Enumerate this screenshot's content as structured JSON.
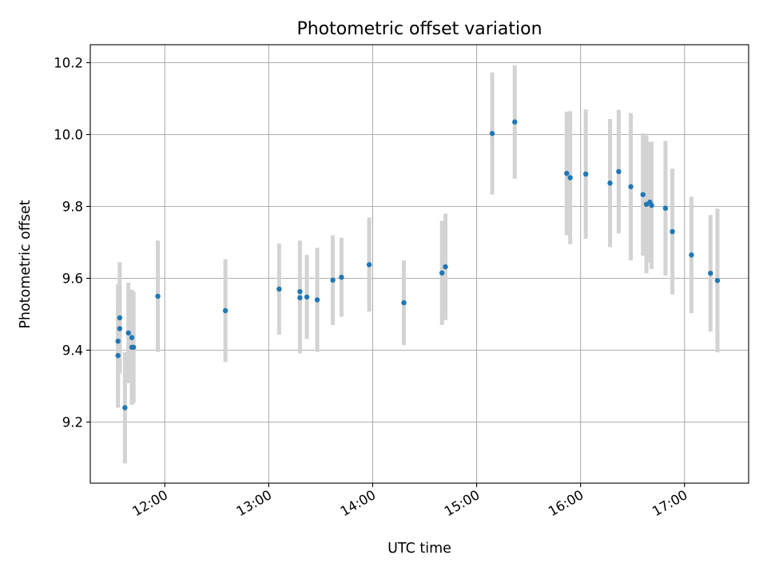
{
  "chart_data": {
    "type": "scatter",
    "title": "Photometric offset variation",
    "xlabel": "UTC time",
    "ylabel": "Photometric offset",
    "xlim": [
      "11:17",
      "17:37"
    ],
    "ylim": [
      9.03,
      10.25
    ],
    "x_ticks": [
      "12:00",
      "13:00",
      "14:00",
      "15:00",
      "16:00",
      "17:00"
    ],
    "y_ticks": [
      9.2,
      9.4,
      9.6,
      9.8,
      10.0,
      10.2
    ],
    "grid": true,
    "legend": "none",
    "colors": {
      "point": "#1f77b4",
      "error_bar": "#d3d3d3"
    },
    "points": [
      {
        "x": "11:33",
        "y": 9.385,
        "err": 0.145
      },
      {
        "x": "11:33",
        "y": 9.425,
        "err": 0.16
      },
      {
        "x": "11:34",
        "y": 9.46,
        "err": 0.12
      },
      {
        "x": "11:34",
        "y": 9.49,
        "err": 0.155
      },
      {
        "x": "11:37",
        "y": 9.24,
        "err": 0.155
      },
      {
        "x": "11:39",
        "y": 9.448,
        "err": 0.14
      },
      {
        "x": "11:41",
        "y": 9.435,
        "err": 0.13
      },
      {
        "x": "11:41",
        "y": 9.408,
        "err": 0.16
      },
      {
        "x": "11:42",
        "y": 9.408,
        "err": 0.155
      },
      {
        "x": "11:56",
        "y": 9.55,
        "err": 0.155
      },
      {
        "x": "12:35",
        "y": 9.51,
        "err": 0.143
      },
      {
        "x": "13:06",
        "y": 9.57,
        "err": 0.127
      },
      {
        "x": "13:18",
        "y": 9.563,
        "err": 0.142
      },
      {
        "x": "13:18",
        "y": 9.546,
        "err": 0.155
      },
      {
        "x": "13:22",
        "y": 9.548,
        "err": 0.117
      },
      {
        "x": "13:28",
        "y": 9.54,
        "err": 0.145
      },
      {
        "x": "13:37",
        "y": 9.595,
        "err": 0.125
      },
      {
        "x": "13:42",
        "y": 9.603,
        "err": 0.11
      },
      {
        "x": "13:58",
        "y": 9.638,
        "err": 0.131
      },
      {
        "x": "14:18",
        "y": 9.532,
        "err": 0.118
      },
      {
        "x": "14:40",
        "y": 9.615,
        "err": 0.145
      },
      {
        "x": "14:42",
        "y": 9.632,
        "err": 0.148
      },
      {
        "x": "15:09",
        "y": 10.003,
        "err": 0.17
      },
      {
        "x": "15:22",
        "y": 10.035,
        "err": 0.158
      },
      {
        "x": "15:52",
        "y": 9.892,
        "err": 0.172
      },
      {
        "x": "15:54",
        "y": 9.88,
        "err": 0.185
      },
      {
        "x": "16:03",
        "y": 9.89,
        "err": 0.18
      },
      {
        "x": "16:17",
        "y": 9.865,
        "err": 0.178
      },
      {
        "x": "16:22",
        "y": 9.897,
        "err": 0.172
      },
      {
        "x": "16:29",
        "y": 9.855,
        "err": 0.205
      },
      {
        "x": "16:36",
        "y": 9.833,
        "err": 0.17
      },
      {
        "x": "16:38",
        "y": 9.806,
        "err": 0.192
      },
      {
        "x": "16:40",
        "y": 9.812,
        "err": 0.168
      },
      {
        "x": "16:41",
        "y": 9.803,
        "err": 0.177
      },
      {
        "x": "16:49",
        "y": 9.795,
        "err": 0.187
      },
      {
        "x": "16:53",
        "y": 9.73,
        "err": 0.175
      },
      {
        "x": "17:04",
        "y": 9.665,
        "err": 0.162
      },
      {
        "x": "17:15",
        "y": 9.614,
        "err": 0.162
      },
      {
        "x": "17:19",
        "y": 9.594,
        "err": 0.2
      }
    ]
  }
}
